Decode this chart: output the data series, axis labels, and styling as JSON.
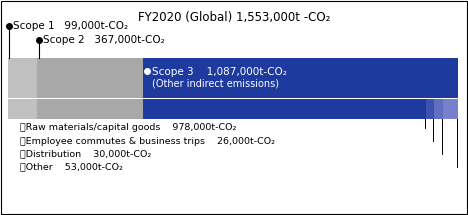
{
  "title": "FY2020 (Global) 1,553,000t -CO₂",
  "total": 1553000,
  "scope1": 99000,
  "scope2": 367000,
  "scope3": 1087000,
  "scope3_subs": [
    978000,
    26000,
    30000,
    53000
  ],
  "scope1_label": "Scope 1   99,000t-CO₂",
  "scope2_label": "Scope 2   367,000t-CO₂",
  "scope3_label": "Scope 3    1,087,000t-CO₂",
  "scope3_sublabel": "(Other indirect emissions)",
  "color_scope1": "#c0c0c0",
  "color_scope2": "#a8a8a8",
  "color_scope3": "#1e3a9f",
  "sub_colors": [
    "#1e3a9f",
    "#3d52b0",
    "#6070c0",
    "#7880cc"
  ],
  "list_items": [
    "・Raw materials/capital goods    978,000t-CO₂",
    "・Employee commutes & business trips    26,000t-CO₂",
    "・Distribution    30,000t-CO₂",
    "・Other    53,000t-CO₂"
  ],
  "fig_bg": "#ffffff"
}
